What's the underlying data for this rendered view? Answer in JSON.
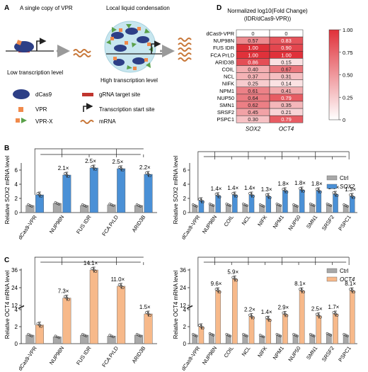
{
  "panel_labels": {
    "A": "A",
    "B": "B",
    "C": "C",
    "D": "D"
  },
  "panelA": {
    "left_title": "A single copy of VPR",
    "right_title": "Local liquid condensation",
    "left_caption": "Low transcription level",
    "right_caption": "High transcription level",
    "legend": {
      "dcas9": "dCas9",
      "vpr": "VPR",
      "vprx": "VPR-X",
      "grna": "gRNA target site",
      "tss": "Transcription start site",
      "mrna": "mRNA"
    }
  },
  "panelD": {
    "title_line1": "Normalized log10(Fold Change)",
    "title_line2": "(IDR/dCas9-VPR))",
    "columns": [
      "SOX2",
      "OCT4"
    ],
    "colorbar_ticks": [
      "1.00",
      "0.75",
      "0.50",
      "0.25",
      "0"
    ],
    "colors": {
      "low": "#ffffff",
      "high": "#e0313a"
    }
  },
  "chart_data": [
    {
      "id": "heatmap_D",
      "type": "heatmap",
      "rows": [
        "dCas9-VPR",
        "NUP98N",
        "FUS IDR",
        "FCA PrLD",
        "ARID3B",
        "COIL",
        "NCL",
        "NIFK",
        "NPM1",
        "NUP50",
        "SMN1",
        "SRSF2",
        "PSPC1"
      ],
      "columns": [
        "SOX2",
        "OCT4"
      ],
      "cells": [
        [
          "0",
          "0"
        ],
        [
          "0.57",
          "0.83"
        ],
        [
          "1.00",
          "0.90"
        ],
        [
          "1.00",
          "1.00"
        ],
        [
          "0.86",
          "0.15"
        ],
        [
          "0.40",
          "0.67"
        ],
        [
          "0.37",
          "0.31"
        ],
        [
          "0.25",
          "0.14"
        ],
        [
          "0.61",
          "0.41"
        ],
        [
          "0.64",
          "0.79"
        ],
        [
          "0.62",
          "0.35"
        ],
        [
          "0.45",
          "0.21"
        ],
        [
          "0.30",
          "0.79"
        ]
      ],
      "values": [
        [
          0,
          0
        ],
        [
          0.57,
          0.83
        ],
        [
          1.0,
          0.9
        ],
        [
          1.0,
          1.0
        ],
        [
          0.86,
          0.15
        ],
        [
          0.4,
          0.67
        ],
        [
          0.37,
          0.31
        ],
        [
          0.25,
          0.14
        ],
        [
          0.61,
          0.41
        ],
        [
          0.64,
          0.79
        ],
        [
          0.62,
          0.35
        ],
        [
          0.45,
          0.21
        ],
        [
          0.3,
          0.79
        ]
      ],
      "colorbar_range": [
        0,
        1
      ]
    },
    {
      "id": "bar_B_left",
      "type": "bar",
      "ylabel": "Relative SOX2 mRNA level",
      "ylim": [
        0,
        7
      ],
      "yticks": [
        "0",
        "2",
        "4",
        "6"
      ],
      "categories": [
        "dCas9-VPR",
        "NUP98N",
        "FUS IDR",
        "FCA PrLD",
        "ARID3B"
      ],
      "series": [
        {
          "name": "Ctrl",
          "values": [
            1.0,
            1.3,
            1.0,
            1.1,
            1.0
          ]
        },
        {
          "name": "SOX2",
          "values": [
            2.5,
            5.3,
            6.3,
            6.2,
            5.4
          ]
        }
      ],
      "fold_labels": [
        "",
        "2.1×",
        "2.5×",
        "2.5×",
        "2.2×"
      ]
    },
    {
      "id": "bar_B_right",
      "type": "bar",
      "ylabel": "Relative SOX2 mRNA level",
      "ylim": [
        0,
        7
      ],
      "yticks": [
        "0",
        "2",
        "4",
        "6"
      ],
      "legend": [
        "Ctrl",
        "SOX2"
      ],
      "categories": [
        "dCas9-VPR",
        "NUP98N",
        "COIL",
        "NCL",
        "NIFK",
        "NPM1",
        "NUP50",
        "SMN1",
        "SRSF2",
        "PSPC1"
      ],
      "series": [
        {
          "name": "Ctrl",
          "values": [
            1.0,
            1.1,
            1.1,
            1.1,
            1.0,
            1.1,
            1.0,
            1.1,
            1.1,
            1.0
          ]
        },
        {
          "name": "SOX2",
          "values": [
            1.7,
            2.4,
            2.5,
            2.5,
            2.3,
            3.1,
            3.2,
            3.1,
            2.6,
            2.3
          ]
        }
      ],
      "fold_labels": [
        "",
        "1.4×",
        "1.4×",
        "1.4×",
        "1.3×",
        "1.8×",
        "1.8×",
        "1.8×",
        "1.5×",
        "1.3×"
      ]
    },
    {
      "id": "bar_C_left",
      "type": "bar",
      "ylabel": "Relative OCT4 mRNA level",
      "yticks": [
        "0",
        "2",
        "4",
        "12",
        "24",
        "36"
      ],
      "axis_break": true,
      "categories": [
        "dCas9-VPR",
        "NUP98N",
        "FUS IDR",
        "FCA PrLD",
        "ARID3B"
      ],
      "series": [
        {
          "name": "Ctrl",
          "values": [
            1.0,
            0.8,
            1.0,
            0.9,
            1.0
          ]
        },
        {
          "name": "OCT4",
          "values": [
            2.2,
            17,
            36,
            25,
            3.5
          ]
        }
      ],
      "fold_labels": [
        "",
        "7.3×",
        "14.1×",
        "11.0×",
        "1.5×"
      ]
    },
    {
      "id": "bar_C_right",
      "type": "bar",
      "ylabel": "Relative OCT4 mRNA level",
      "yticks": [
        "0",
        "2",
        "4",
        "12",
        "24",
        "36"
      ],
      "axis_break": true,
      "legend": [
        "Ctrl",
        "OCT4"
      ],
      "categories": [
        "dCas9-VPR",
        "NUP98N",
        "COIL",
        "NCL",
        "NIFK",
        "NPM1",
        "NUP50",
        "SMN1",
        "SRSF2",
        "PSPC1"
      ],
      "series": [
        {
          "name": "Ctrl",
          "values": [
            1.0,
            1.1,
            1.0,
            1.0,
            0.9,
            1.0,
            1.0,
            1.0,
            1.1,
            1.0
          ]
        },
        {
          "name": "OCT4",
          "values": [
            2.0,
            22,
            30,
            4.5,
            2.9,
            6.0,
            22,
            5.0,
            3.5,
            22
          ]
        }
      ],
      "fold_labels": [
        "",
        "9.6×",
        "5.9×",
        "2.2×",
        "1.4×",
        "2.9×",
        "8.1×",
        "2.5×",
        "1.7×",
        "8.1×"
      ]
    }
  ]
}
